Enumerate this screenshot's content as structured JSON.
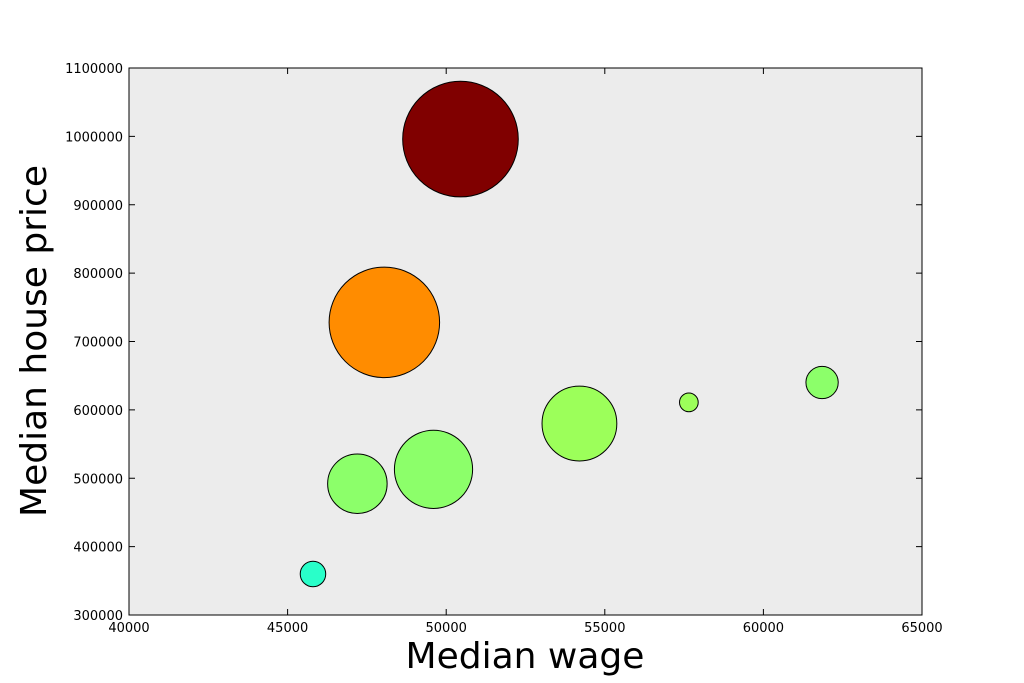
{
  "chart_data": {
    "type": "scatter",
    "title": "",
    "xlabel": "Median wage",
    "ylabel": "Median house price",
    "xlim": [
      40000,
      65000
    ],
    "ylim": [
      300000,
      1100000
    ],
    "xticks": [
      40000,
      45000,
      50000,
      55000,
      60000,
      65000
    ],
    "yticks": [
      300000,
      400000,
      500000,
      600000,
      700000,
      800000,
      900000,
      1000000,
      1100000
    ],
    "grid": false,
    "background": "#ececec",
    "points": [
      {
        "x": 50450,
        "y": 996000,
        "size": 3.4,
        "color": "#800000"
      },
      {
        "x": 48050,
        "y": 728000,
        "size": 3.25,
        "color": "#ff8c00"
      },
      {
        "x": 54200,
        "y": 580000,
        "size": 2.2,
        "color": "#9cff5a"
      },
      {
        "x": 49600,
        "y": 513000,
        "size": 2.3,
        "color": "#8cff6a"
      },
      {
        "x": 47200,
        "y": 492000,
        "size": 1.75,
        "color": "#8cff6a"
      },
      {
        "x": 61850,
        "y": 640000,
        "size": 0.95,
        "color": "#8cff6a"
      },
      {
        "x": 57650,
        "y": 611000,
        "size": 0.55,
        "color": "#9cff5a"
      },
      {
        "x": 45800,
        "y": 360000,
        "size": 0.75,
        "color": "#29ffc9"
      }
    ]
  }
}
